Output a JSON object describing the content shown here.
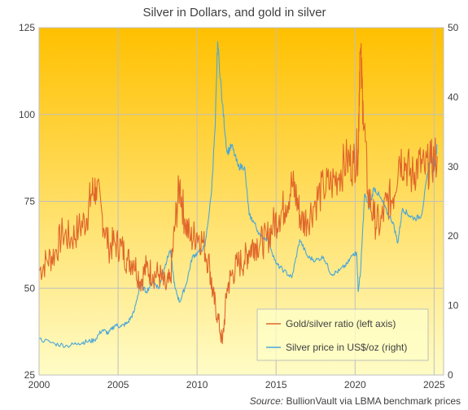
{
  "chart_data": {
    "type": "line",
    "title": "Silver in Dollars, and gold in silver",
    "source_label": "Source:",
    "source_text": "BullionVault via LBMA benchmark prices",
    "grid": true,
    "legend_position": "bottom-right",
    "x_ticks": [
      "2000",
      "2005",
      "2010",
      "2015",
      "2020",
      "2025"
    ],
    "xlim": [
      2000,
      2025.6
    ],
    "left_axis": {
      "ylim": [
        25,
        125
      ],
      "ticks": [
        "25",
        "50",
        "75",
        "100",
        "125"
      ]
    },
    "right_axis": {
      "ylim": [
        0,
        50
      ],
      "ticks": [
        "0",
        "10",
        "20",
        "30",
        "40",
        "50"
      ]
    },
    "colors": {
      "ratio": "#e0662b",
      "silver": "#4aa7d8",
      "bg_top": "#ffc000",
      "bg_bottom": "#fffcc6",
      "grid": "#bfbfbf"
    },
    "series": [
      {
        "name": "Gold/silver ratio (left axis)",
        "axis": "left",
        "x": [
          2000.0,
          2000.5,
          2001.0,
          2001.5,
          2002.0,
          2002.5,
          2003.0,
          2003.3,
          2003.6,
          2004.0,
          2004.4,
          2004.8,
          2005.2,
          2005.6,
          2006.0,
          2006.4,
          2006.8,
          2007.2,
          2007.6,
          2008.0,
          2008.3,
          2008.6,
          2008.9,
          2009.2,
          2009.6,
          2010.0,
          2010.4,
          2010.8,
          2011.0,
          2011.3,
          2011.6,
          2011.9,
          2012.2,
          2012.6,
          2013.0,
          2013.3,
          2013.6,
          2014.0,
          2014.4,
          2014.8,
          2015.2,
          2015.6,
          2016.0,
          2016.3,
          2016.6,
          2017.0,
          2017.5,
          2018.0,
          2018.5,
          2019.0,
          2019.5,
          2019.9,
          2020.2,
          2020.3,
          2020.5,
          2020.8,
          2021.2,
          2021.6,
          2022.0,
          2022.4,
          2022.8,
          2023.2,
          2023.6,
          2024.0,
          2024.4,
          2024.8,
          2025.2
        ],
        "values": [
          55,
          58,
          60,
          66,
          64,
          67,
          70,
          77,
          79,
          71,
          62,
          63,
          62,
          58,
          58,
          52,
          56,
          54,
          54,
          50,
          52,
          68,
          80,
          70,
          64,
          66,
          63,
          56,
          48,
          42,
          34,
          50,
          54,
          57,
          58,
          61,
          63,
          63,
          64,
          68,
          71,
          74,
          80,
          76,
          69,
          70,
          75,
          79,
          80,
          83,
          87,
          86,
          90,
          118,
          104,
          78,
          70,
          68,
          75,
          76,
          88,
          86,
          82,
          86,
          84,
          86,
          88
        ]
      },
      {
        "name": "Silver price in US$/oz (right)",
        "axis": "right",
        "x": [
          2000.0,
          2001.0,
          2001.8,
          2002.5,
          2003.0,
          2003.5,
          2004.0,
          2004.4,
          2004.8,
          2005.2,
          2005.6,
          2006.0,
          2006.4,
          2006.8,
          2007.2,
          2007.6,
          2008.0,
          2008.3,
          2008.6,
          2008.9,
          2009.3,
          2009.7,
          2010.0,
          2010.5,
          2010.9,
          2011.15,
          2011.3,
          2011.6,
          2011.9,
          2012.2,
          2012.6,
          2013.0,
          2013.3,
          2013.6,
          2014.0,
          2014.5,
          2015.0,
          2015.5,
          2016.0,
          2016.5,
          2017.0,
          2017.5,
          2018.0,
          2018.5,
          2019.0,
          2019.5,
          2019.9,
          2020.1,
          2020.2,
          2020.35,
          2020.6,
          2020.9,
          2021.2,
          2021.6,
          2022.0,
          2022.4,
          2022.7,
          2023.0,
          2023.4,
          2023.8,
          2024.2,
          2024.6,
          2024.8,
          2025.0,
          2025.2
        ],
        "values": [
          5.2,
          4.5,
          4.2,
          4.6,
          4.8,
          5.0,
          6.5,
          6.0,
          7.2,
          7.0,
          7.5,
          9.0,
          13.0,
          12.0,
          13.5,
          12.5,
          16.0,
          18.0,
          12.5,
          10.5,
          13.0,
          17.0,
          17.5,
          18.5,
          26.0,
          36.0,
          48.0,
          39.0,
          32.0,
          33.0,
          30.0,
          30.0,
          23.0,
          22.0,
          20.0,
          19.5,
          16.0,
          15.0,
          14.0,
          19.5,
          17.0,
          16.5,
          17.0,
          14.5,
          15.0,
          16.0,
          17.5,
          17.5,
          12.0,
          15.0,
          26.0,
          24.0,
          27.0,
          25.5,
          23.5,
          22.0,
          19.0,
          24.0,
          23.0,
          22.5,
          23.0,
          29.0,
          32.0,
          29.5,
          33.0
        ]
      }
    ]
  }
}
